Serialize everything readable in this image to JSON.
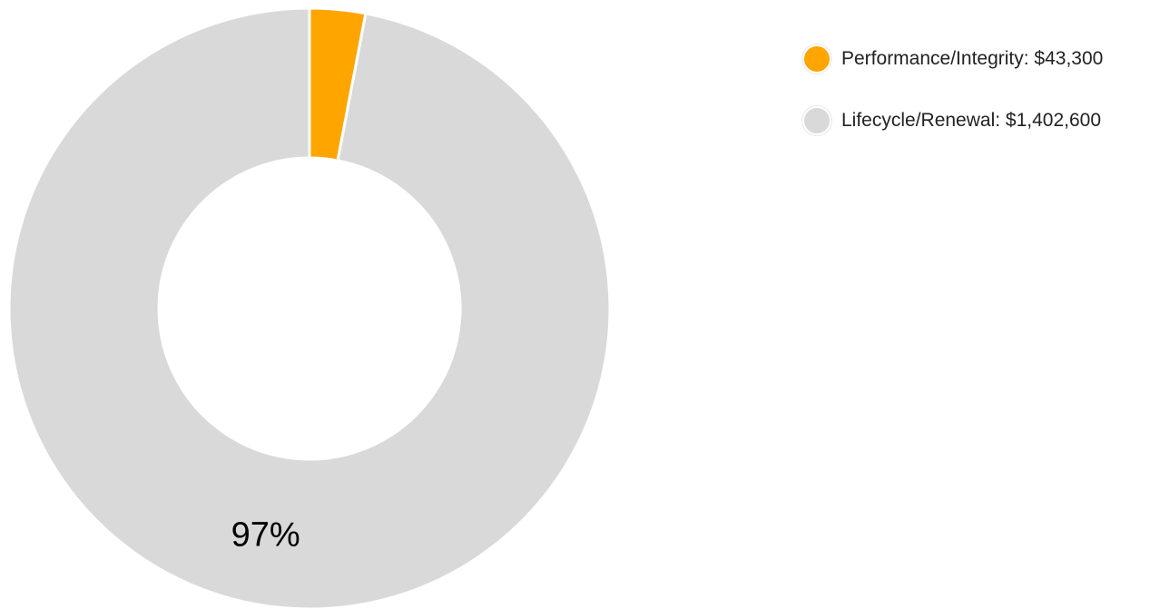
{
  "chart_data": {
    "type": "pie",
    "variant": "donut",
    "title": "",
    "categories": [
      "Performance/Integrity",
      "Lifecycle/Renewal"
    ],
    "values": [
      43300,
      1402600
    ],
    "colors": [
      "#FFA500",
      "#D9D9D9"
    ],
    "legend": {
      "placement": "right",
      "entries": [
        {
          "label": "Performance/Integrity: $43,300",
          "color": "#FFA500"
        },
        {
          "label": "Lifecycle/Renewal: $1,402,600",
          "color": "#D9D9D9"
        }
      ]
    },
    "slice_labels": [
      "",
      "97%"
    ]
  }
}
